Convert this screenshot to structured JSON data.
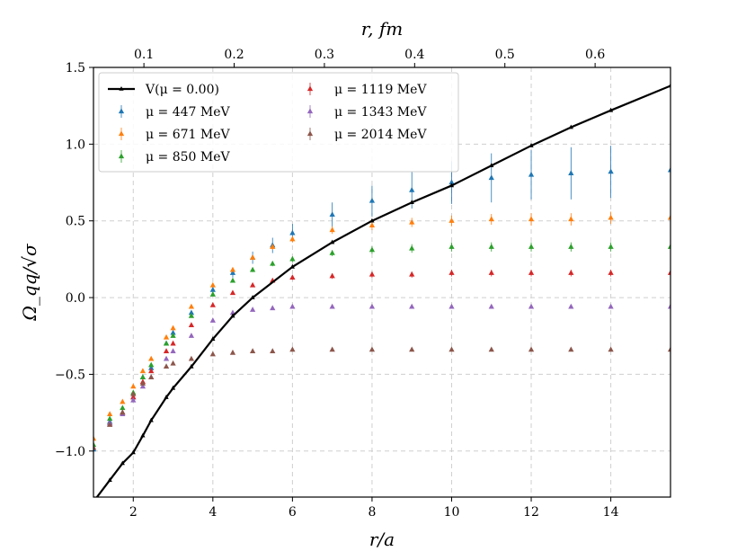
{
  "chart_data": {
    "type": "scatter",
    "title": "",
    "xlabel": "r/a",
    "ylabel": "Ω_qq/√σ",
    "top_xlabel": "r, fm",
    "xlim": [
      1,
      15.5
    ],
    "ylim": [
      -1.3,
      1.5
    ],
    "xticks": [
      2,
      4,
      6,
      8,
      10,
      12,
      14
    ],
    "xtick_labels": [
      "2",
      "4",
      "6",
      "8",
      "10",
      "12",
      "14"
    ],
    "yticks": [
      -1.0,
      -0.5,
      0.0,
      0.5,
      1.0,
      1.5
    ],
    "ytick_labels": [
      "−1.0",
      "−0.5",
      "0.0",
      "0.5",
      "1.0",
      "1.5"
    ],
    "top_xticks_fm": [
      0.1,
      0.2,
      0.3,
      0.4,
      0.5,
      0.6
    ],
    "top_xtick_labels": [
      "0.1",
      "0.2",
      "0.3",
      "0.4",
      "0.5",
      "0.6"
    ],
    "fm_per_a": 0.0441,
    "grid": true,
    "legend_position": "top-left",
    "series": [
      {
        "name": "V(μ = 0.00)",
        "kind": "line",
        "color": "#000000",
        "x": [
          1.0,
          1.41,
          1.73,
          2.0,
          2.24,
          2.45,
          2.83,
          3.0,
          3.46,
          4.0,
          4.5,
          5.0,
          6.0,
          7.0,
          8.0,
          9.0,
          10.0,
          11.0,
          12.0,
          13.0,
          14.0,
          15.5
        ],
        "y": [
          -1.33,
          -1.19,
          -1.08,
          -1.01,
          -0.9,
          -0.8,
          -0.65,
          -0.59,
          -0.45,
          -0.27,
          -0.12,
          0.0,
          0.2,
          0.36,
          0.5,
          0.62,
          0.73,
          0.86,
          0.99,
          1.11,
          1.22,
          1.38
        ]
      },
      {
        "name": "μ = 447 MeV",
        "kind": "scatter",
        "color": "#1f77b4",
        "x": [
          1.0,
          1.41,
          1.73,
          2.0,
          2.24,
          2.45,
          2.83,
          3.0,
          3.46,
          4.0,
          4.5,
          5.0,
          5.5,
          6.0,
          7.0,
          8.0,
          9.0,
          10.0,
          11.0,
          12.0,
          13.0,
          14.0,
          15.5
        ],
        "y": [
          -0.99,
          -0.81,
          -0.75,
          -0.65,
          -0.52,
          -0.46,
          -0.3,
          -0.23,
          -0.1,
          0.05,
          0.16,
          0.26,
          0.34,
          0.42,
          0.54,
          0.63,
          0.7,
          0.75,
          0.78,
          0.8,
          0.81,
          0.82,
          0.83
        ],
        "err": [
          0.005,
          0.005,
          0.005,
          0.005,
          0.005,
          0.006,
          0.008,
          0.01,
          0.015,
          0.02,
          0.03,
          0.04,
          0.05,
          0.06,
          0.08,
          0.1,
          0.12,
          0.14,
          0.16,
          0.16,
          0.17,
          0.17,
          0.16
        ]
      },
      {
        "name": "μ = 671 MeV",
        "kind": "scatter",
        "color": "#ff7f0e",
        "x": [
          1.0,
          1.41,
          1.73,
          2.0,
          2.24,
          2.45,
          2.83,
          3.0,
          3.46,
          4.0,
          4.5,
          5.0,
          5.5,
          6.0,
          7.0,
          8.0,
          9.0,
          10.0,
          11.0,
          12.0,
          13.0,
          14.0,
          15.5
        ],
        "y": [
          -0.92,
          -0.76,
          -0.68,
          -0.58,
          -0.48,
          -0.4,
          -0.26,
          -0.2,
          -0.06,
          0.08,
          0.18,
          0.26,
          0.33,
          0.38,
          0.44,
          0.47,
          0.49,
          0.5,
          0.51,
          0.51,
          0.51,
          0.52,
          0.52
        ],
        "err": [
          0.005,
          0.005,
          0.005,
          0.005,
          0.005,
          0.005,
          0.006,
          0.007,
          0.008,
          0.01,
          0.012,
          0.015,
          0.018,
          0.02,
          0.025,
          0.03,
          0.03,
          0.035,
          0.035,
          0.04,
          0.04,
          0.04,
          0.04
        ]
      },
      {
        "name": "μ = 850 MeV",
        "kind": "scatter",
        "color": "#2ca02c",
        "x": [
          1.0,
          1.41,
          1.73,
          2.0,
          2.24,
          2.45,
          2.83,
          3.0,
          3.46,
          4.0,
          4.5,
          5.0,
          5.5,
          6.0,
          7.0,
          8.0,
          9.0,
          10.0,
          11.0,
          12.0,
          13.0,
          14.0,
          15.5
        ],
        "y": [
          -0.96,
          -0.79,
          -0.72,
          -0.62,
          -0.52,
          -0.44,
          -0.3,
          -0.25,
          -0.12,
          0.02,
          0.11,
          0.18,
          0.22,
          0.25,
          0.29,
          0.31,
          0.32,
          0.33,
          0.33,
          0.33,
          0.33,
          0.33,
          0.33
        ],
        "err": [
          0.005,
          0.005,
          0.005,
          0.005,
          0.005,
          0.005,
          0.006,
          0.007,
          0.008,
          0.01,
          0.012,
          0.014,
          0.016,
          0.018,
          0.02,
          0.025,
          0.028,
          0.03,
          0.03,
          0.03,
          0.03,
          0.03,
          0.03
        ]
      },
      {
        "name": "μ = 1119 MeV",
        "kind": "scatter",
        "color": "#d62728",
        "x": [
          1.0,
          1.41,
          1.73,
          2.0,
          2.24,
          2.45,
          2.83,
          3.0,
          3.46,
          4.0,
          4.5,
          5.0,
          5.5,
          6.0,
          7.0,
          8.0,
          9.0,
          10.0,
          11.0,
          12.0,
          13.0,
          14.0,
          15.5
        ],
        "y": [
          -0.98,
          -0.82,
          -0.75,
          -0.65,
          -0.55,
          -0.48,
          -0.35,
          -0.3,
          -0.18,
          -0.05,
          0.03,
          0.08,
          0.11,
          0.13,
          0.14,
          0.15,
          0.15,
          0.16,
          0.16,
          0.16,
          0.16,
          0.16,
          0.16
        ],
        "err": [
          0.005,
          0.005,
          0.005,
          0.005,
          0.005,
          0.005,
          0.005,
          0.006,
          0.007,
          0.008,
          0.01,
          0.012,
          0.014,
          0.015,
          0.018,
          0.02,
          0.02,
          0.022,
          0.022,
          0.022,
          0.022,
          0.022,
          0.022
        ]
      },
      {
        "name": "μ = 1343 MeV",
        "kind": "scatter",
        "color": "#9467bd",
        "x": [
          1.0,
          1.41,
          1.73,
          2.0,
          2.24,
          2.45,
          2.83,
          3.0,
          3.46,
          4.0,
          4.5,
          5.0,
          5.5,
          6.0,
          7.0,
          8.0,
          9.0,
          10.0,
          11.0,
          12.0,
          13.0,
          14.0,
          15.5
        ],
        "y": [
          -0.98,
          -0.82,
          -0.76,
          -0.67,
          -0.58,
          -0.52,
          -0.4,
          -0.35,
          -0.25,
          -0.15,
          -0.1,
          -0.08,
          -0.07,
          -0.06,
          -0.06,
          -0.06,
          -0.06,
          -0.06,
          -0.06,
          -0.06,
          -0.06,
          -0.06,
          -0.06
        ],
        "err": [
          0.004,
          0.004,
          0.004,
          0.004,
          0.004,
          0.004,
          0.004,
          0.005,
          0.005,
          0.006,
          0.007,
          0.008,
          0.009,
          0.01,
          0.01,
          0.012,
          0.012,
          0.012,
          0.012,
          0.012,
          0.012,
          0.012,
          0.012
        ]
      },
      {
        "name": "μ = 2014 MeV",
        "kind": "scatter",
        "color": "#8c564b",
        "x": [
          1.0,
          1.41,
          1.73,
          2.0,
          2.24,
          2.45,
          2.83,
          3.0,
          3.46,
          4.0,
          4.5,
          5.0,
          5.5,
          6.0,
          7.0,
          8.0,
          9.0,
          10.0,
          11.0,
          12.0,
          13.0,
          14.0,
          15.5
        ],
        "y": [
          -0.98,
          -0.83,
          -0.75,
          -0.63,
          -0.56,
          -0.52,
          -0.45,
          -0.43,
          -0.4,
          -0.37,
          -0.36,
          -0.35,
          -0.35,
          -0.34,
          -0.34,
          -0.34,
          -0.34,
          -0.34,
          -0.34,
          -0.34,
          -0.34,
          -0.34,
          -0.34
        ],
        "err": [
          0.003,
          0.003,
          0.003,
          0.003,
          0.003,
          0.003,
          0.003,
          0.003,
          0.003,
          0.004,
          0.004,
          0.004,
          0.005,
          0.005,
          0.005,
          0.006,
          0.006,
          0.006,
          0.006,
          0.006,
          0.006,
          0.006,
          0.006
        ]
      }
    ]
  }
}
